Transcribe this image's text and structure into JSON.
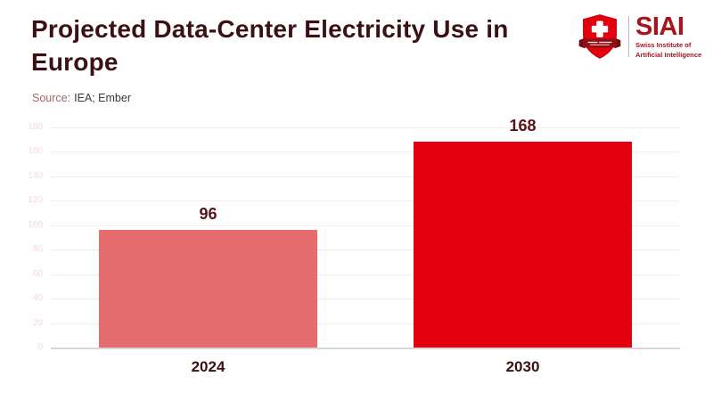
{
  "header": {
    "title": "Projected Data-Center Electricity Use in Europe",
    "source_label": "Source:",
    "source_value": "IEA; Ember"
  },
  "logo": {
    "acronym": "SIAI",
    "name_line1": "Swiss Institute of",
    "name_line2": "Artificial Intelligence"
  },
  "colors": {
    "title_text": "#3c1114",
    "value_label_text": "#571317",
    "axis_tick_text": "#f6d8d8",
    "gridline": "#f9e7e7",
    "baseline": "#d7d7d7",
    "logo_red": "#a6161d",
    "shield_red": "#e3000f",
    "ribbon_dark_red": "#8d1016"
  },
  "chart_data": {
    "type": "bar",
    "title": "Projected Data-Center Electricity Use in Europe",
    "source": "IEA; Ember",
    "categories": [
      "2024",
      "2030"
    ],
    "values": [
      96,
      168
    ],
    "bar_colors": [
      "#e56d6d",
      "#e3000f"
    ],
    "value_labels": [
      96,
      168
    ],
    "xlabel": "",
    "ylabel": "",
    "ylim": [
      0,
      180
    ],
    "ytick_step": 20,
    "yticks": [
      0,
      20,
      40,
      60,
      80,
      100,
      120,
      140,
      160,
      180
    ],
    "grid": true,
    "legend": false
  }
}
